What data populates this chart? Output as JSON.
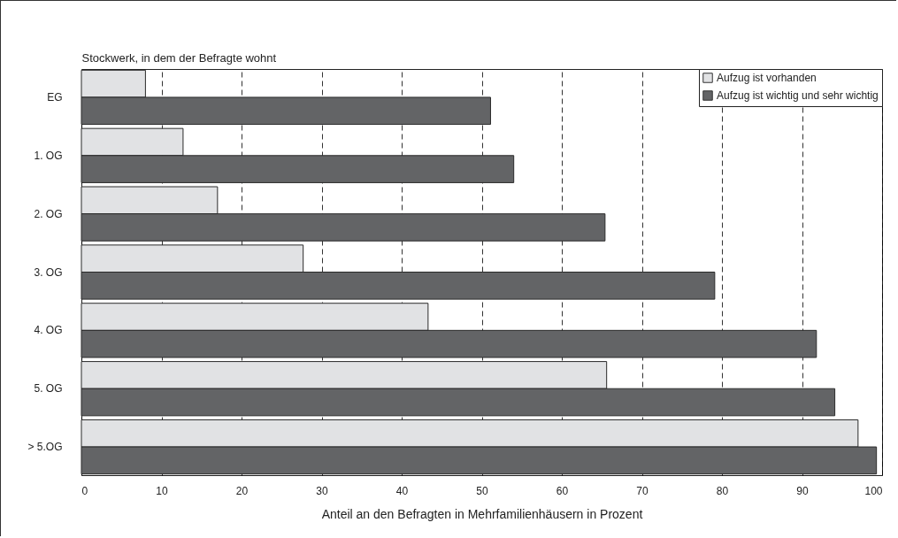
{
  "chart_data": {
    "type": "bar",
    "orientation": "horizontal",
    "ylabel": "Stockwerk, in dem der Befragte wohnt",
    "xlabel": "Anteil an den Befragten in Mehrfamilienhäusern in Prozent",
    "categories": [
      "EG",
      "1. OG",
      "2. OG",
      "3. OG",
      "4. OG",
      "5. OG",
      "> 5.OG"
    ],
    "series": [
      {
        "name": "Aufzug ist vorhanden",
        "color": "#e1e2e4",
        "values": [
          8.0,
          12.7,
          17.0,
          27.7,
          43.3,
          65.6,
          97.0
        ]
      },
      {
        "name": "Aufzug ist wichtig und sehr wichtig",
        "color": "#636466",
        "values": [
          51.1,
          54.0,
          65.4,
          79.1,
          91.8,
          94.1,
          99.3
        ]
      }
    ],
    "xlim": [
      0,
      100
    ],
    "xticks": [
      0,
      10,
      20,
      30,
      40,
      50,
      60,
      70,
      80,
      90,
      100
    ],
    "grid": "x",
    "legend": "top right"
  }
}
